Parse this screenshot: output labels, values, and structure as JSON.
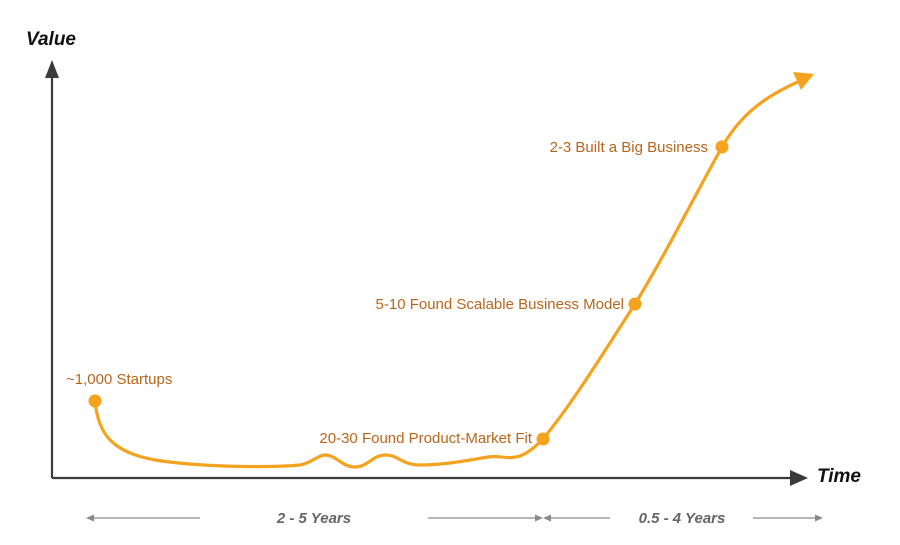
{
  "axes": {
    "y_label": "Value",
    "x_label": "Time"
  },
  "milestones": [
    {
      "label": "~1,000 Startups"
    },
    {
      "label": "20-30 Found Product-Market Fit"
    },
    {
      "label": "5-10 Found Scalable Business Model"
    },
    {
      "label": "2-3 Built a Big Business"
    }
  ],
  "time_spans": [
    {
      "label": "2 - 5 Years"
    },
    {
      "label": "0.5 - 4 Years"
    }
  ],
  "colors": {
    "curve": "#f5a21e",
    "label": "#b8661c",
    "axis": "#3a3a3a",
    "span_arrow": "#8a8a8a"
  }
}
